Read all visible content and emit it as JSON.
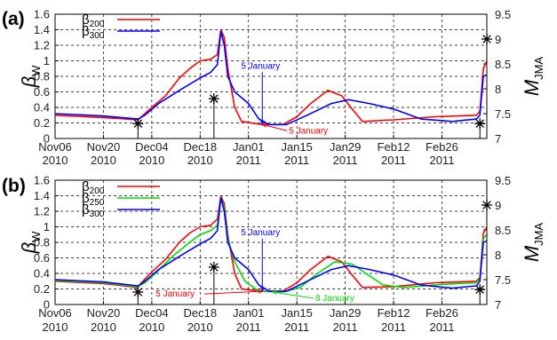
{
  "chart_data": [
    {
      "type": "line",
      "panel_label": "(a)",
      "ylabel": "βW",
      "ylabel_base": "β",
      "ylabel_sub": "W",
      "y2label": "MJMA",
      "y2label_base": "M",
      "y2label_sub": "JMA",
      "ylim": [
        0,
        1.6
      ],
      "y2lim": [
        7,
        9.5
      ],
      "yticks": [
        "0",
        "0.2",
        "0.4",
        "0.6",
        "0.8",
        "1",
        "1.2",
        "1.4",
        "1.6"
      ],
      "y2ticks": [
        "7",
        "7.5",
        "8",
        "8.5",
        "9",
        "9.5"
      ],
      "xticks": [
        {
          "date": "2010-11-06",
          "label1": "Nov06",
          "label2": "2010"
        },
        {
          "date": "2010-11-20",
          "label1": "Nov20",
          "label2": "2010"
        },
        {
          "date": "2010-12-04",
          "label1": "Dec04",
          "label2": "2010"
        },
        {
          "date": "2010-12-18",
          "label1": "Dec18",
          "label2": "2010"
        },
        {
          "date": "2011-01-01",
          "label1": "Jan01",
          "label2": "2011"
        },
        {
          "date": "2011-01-15",
          "label1": "Jan15",
          "label2": "2011"
        },
        {
          "date": "2011-01-29",
          "label1": "Jan29",
          "label2": "2011"
        },
        {
          "date": "2011-02-12",
          "label1": "Feb12",
          "label2": "2011"
        },
        {
          "date": "2011-02-26",
          "label1": "Feb26",
          "label2": "2011"
        }
      ],
      "xlim": [
        "2010-11-06",
        "2011-03-11"
      ],
      "grid": true,
      "legend": "top-left",
      "series": [
        {
          "name": "β200",
          "name_base": "β",
          "name_sub": "200",
          "color": "#ff0000",
          "points": [
            [
              "2010-11-06",
              0.3
            ],
            [
              "2010-11-20",
              0.27
            ],
            [
              "2010-11-30",
              0.24
            ],
            [
              "2010-12-01",
              0.28
            ],
            [
              "2010-12-04",
              0.4
            ],
            [
              "2010-12-08",
              0.55
            ],
            [
              "2010-12-12",
              0.78
            ],
            [
              "2010-12-15",
              0.9
            ],
            [
              "2010-12-18",
              1.0
            ],
            [
              "2010-12-21",
              1.02
            ],
            [
              "2010-12-23",
              1.08
            ],
            [
              "2010-12-24",
              1.4
            ],
            [
              "2010-12-25",
              1.3
            ],
            [
              "2010-12-26",
              0.9
            ],
            [
              "2010-12-28",
              0.4
            ],
            [
              "2010-12-30",
              0.22
            ],
            [
              "2011-01-05",
              0.18
            ],
            [
              "2011-01-11",
              0.18
            ],
            [
              "2011-01-15",
              0.28
            ],
            [
              "2011-01-19",
              0.45
            ],
            [
              "2011-01-24",
              0.62
            ],
            [
              "2011-01-28",
              0.55
            ],
            [
              "2011-01-31",
              0.38
            ],
            [
              "2011-02-03",
              0.22
            ],
            [
              "2011-02-12",
              0.24
            ],
            [
              "2011-02-24",
              0.28
            ],
            [
              "2011-03-08",
              0.3
            ],
            [
              "2011-03-09",
              0.35
            ],
            [
              "2011-03-10",
              0.9
            ],
            [
              "2011-03-11",
              1.0
            ]
          ]
        },
        {
          "name": "β300",
          "name_base": "β",
          "name_sub": "300",
          "color": "#0000ff",
          "points": [
            [
              "2010-11-06",
              0.32
            ],
            [
              "2010-11-20",
              0.29
            ],
            [
              "2010-11-30",
              0.25
            ],
            [
              "2010-12-02",
              0.3
            ],
            [
              "2010-12-06",
              0.45
            ],
            [
              "2010-12-12",
              0.62
            ],
            [
              "2010-12-18",
              0.78
            ],
            [
              "2010-12-21",
              0.85
            ],
            [
              "2010-12-23",
              0.95
            ],
            [
              "2010-12-24",
              1.38
            ],
            [
              "2010-12-25",
              1.2
            ],
            [
              "2010-12-26",
              0.8
            ],
            [
              "2010-12-28",
              0.6
            ],
            [
              "2011-01-01",
              0.45
            ],
            [
              "2011-01-04",
              0.25
            ],
            [
              "2011-01-07",
              0.18
            ],
            [
              "2011-01-12",
              0.18
            ],
            [
              "2011-01-18",
              0.3
            ],
            [
              "2011-01-25",
              0.45
            ],
            [
              "2011-01-30",
              0.5
            ],
            [
              "2011-02-05",
              0.45
            ],
            [
              "2011-02-12",
              0.38
            ],
            [
              "2011-02-20",
              0.25
            ],
            [
              "2011-03-01",
              0.22
            ],
            [
              "2011-03-08",
              0.25
            ],
            [
              "2011-03-09",
              0.3
            ],
            [
              "2011-03-10",
              0.8
            ],
            [
              "2011-03-11",
              0.82
            ]
          ]
        }
      ],
      "earthquakes": [
        {
          "date": "2010-11-30",
          "magnitude": 7.3
        },
        {
          "date": "2010-12-22",
          "magnitude": 7.8
        },
        {
          "date": "2011-03-09",
          "magnitude": 7.3
        },
        {
          "date": "2011-03-11",
          "magnitude": 9.0
        }
      ],
      "annotations": [
        {
          "text": "5 January",
          "color": "#0000ff",
          "position": "above",
          "date": "2011-01-05",
          "value": 0.18
        },
        {
          "text": "5 January",
          "color": "#ff0000",
          "position": "below-right",
          "date": "2011-01-05",
          "value": 0.18
        }
      ]
    },
    {
      "type": "line",
      "panel_label": "(b)",
      "ylabel": "βW",
      "ylabel_base": "β",
      "ylabel_sub": "W",
      "y2label": "MJMA",
      "y2label_base": "M",
      "y2label_sub": "JMA",
      "ylim": [
        0,
        1.6
      ],
      "y2lim": [
        7,
        9.5
      ],
      "yticks": [
        "0",
        "0.2",
        "0.4",
        "0.6",
        "0.8",
        "1",
        "1.2",
        "1.4",
        "1.6"
      ],
      "y2ticks": [
        "7",
        "7.5",
        "8",
        "8.5",
        "9",
        "9.5"
      ],
      "xticks": [
        {
          "date": "2010-11-06",
          "label1": "Nov06",
          "label2": "2010"
        },
        {
          "date": "2010-11-20",
          "label1": "Nov20",
          "label2": "2010"
        },
        {
          "date": "2010-12-04",
          "label1": "Dec04",
          "label2": "2010"
        },
        {
          "date": "2010-12-18",
          "label1": "Dec18",
          "label2": "2010"
        },
        {
          "date": "2011-01-01",
          "label1": "Jan01",
          "label2": "2011"
        },
        {
          "date": "2011-01-15",
          "label1": "Jan15",
          "label2": "2011"
        },
        {
          "date": "2011-01-29",
          "label1": "Jan29",
          "label2": "2011"
        },
        {
          "date": "2011-02-12",
          "label1": "Feb12",
          "label2": "2011"
        },
        {
          "date": "2011-02-26",
          "label1": "Feb26",
          "label2": "2011"
        }
      ],
      "xlim": [
        "2010-11-06",
        "2011-03-11"
      ],
      "grid": true,
      "legend": "top-left",
      "series": [
        {
          "name": "β200",
          "name_base": "β",
          "name_sub": "200",
          "color": "#ff0000",
          "points": [
            [
              "2010-11-06",
              0.3
            ],
            [
              "2010-11-20",
              0.27
            ],
            [
              "2010-11-30",
              0.22
            ],
            [
              "2010-12-01",
              0.28
            ],
            [
              "2010-12-04",
              0.42
            ],
            [
              "2010-12-08",
              0.58
            ],
            [
              "2010-12-12",
              0.8
            ],
            [
              "2010-12-15",
              0.92
            ],
            [
              "2010-12-18",
              1.0
            ],
            [
              "2010-12-21",
              1.02
            ],
            [
              "2010-12-23",
              1.1
            ],
            [
              "2010-12-24",
              1.4
            ],
            [
              "2010-12-25",
              1.3
            ],
            [
              "2010-12-26",
              0.9
            ],
            [
              "2010-12-28",
              0.4
            ],
            [
              "2010-12-30",
              0.2
            ],
            [
              "2011-01-05",
              0.17
            ],
            [
              "2011-01-11",
              0.17
            ],
            [
              "2011-01-15",
              0.28
            ],
            [
              "2011-01-19",
              0.45
            ],
            [
              "2011-01-24",
              0.62
            ],
            [
              "2011-01-28",
              0.55
            ],
            [
              "2011-01-31",
              0.38
            ],
            [
              "2011-02-03",
              0.22
            ],
            [
              "2011-02-12",
              0.23
            ],
            [
              "2011-02-24",
              0.28
            ],
            [
              "2011-03-08",
              0.3
            ],
            [
              "2011-03-09",
              0.35
            ],
            [
              "2011-03-10",
              0.92
            ],
            [
              "2011-03-11",
              1.0
            ]
          ]
        },
        {
          "name": "β250",
          "name_base": "β",
          "name_sub": "250",
          "color": "#00dd00",
          "points": [
            [
              "2010-11-06",
              0.31
            ],
            [
              "2010-11-20",
              0.28
            ],
            [
              "2010-11-30",
              0.23
            ],
            [
              "2010-12-02",
              0.28
            ],
            [
              "2010-12-05",
              0.4
            ],
            [
              "2010-12-10",
              0.62
            ],
            [
              "2010-12-15",
              0.8
            ],
            [
              "2010-12-18",
              0.9
            ],
            [
              "2010-12-21",
              0.95
            ],
            [
              "2010-12-23",
              1.02
            ],
            [
              "2010-12-24",
              1.38
            ],
            [
              "2010-12-25",
              1.25
            ],
            [
              "2010-12-26",
              0.85
            ],
            [
              "2010-12-28",
              0.55
            ],
            [
              "2010-12-31",
              0.3
            ],
            [
              "2011-01-04",
              0.17
            ],
            [
              "2011-01-11",
              0.16
            ],
            [
              "2011-01-16",
              0.22
            ],
            [
              "2011-01-21",
              0.4
            ],
            [
              "2011-01-26",
              0.55
            ],
            [
              "2011-01-31",
              0.52
            ],
            [
              "2011-02-04",
              0.4
            ],
            [
              "2011-02-09",
              0.25
            ],
            [
              "2011-02-15",
              0.22
            ],
            [
              "2011-02-26",
              0.26
            ],
            [
              "2011-03-08",
              0.28
            ],
            [
              "2011-03-09",
              0.33
            ],
            [
              "2011-03-10",
              0.85
            ],
            [
              "2011-03-11",
              0.9
            ]
          ]
        },
        {
          "name": "β300",
          "name_base": "β",
          "name_sub": "300",
          "color": "#0000ff",
          "points": [
            [
              "2010-11-06",
              0.32
            ],
            [
              "2010-11-20",
              0.29
            ],
            [
              "2010-11-30",
              0.24
            ],
            [
              "2010-12-02",
              0.3
            ],
            [
              "2010-12-06",
              0.45
            ],
            [
              "2010-12-12",
              0.62
            ],
            [
              "2010-12-18",
              0.78
            ],
            [
              "2010-12-21",
              0.85
            ],
            [
              "2010-12-23",
              0.95
            ],
            [
              "2010-12-24",
              1.37
            ],
            [
              "2010-12-25",
              1.2
            ],
            [
              "2010-12-26",
              0.8
            ],
            [
              "2010-12-28",
              0.6
            ],
            [
              "2011-01-01",
              0.45
            ],
            [
              "2011-01-04",
              0.25
            ],
            [
              "2011-01-07",
              0.17
            ],
            [
              "2011-01-12",
              0.17
            ],
            [
              "2011-01-18",
              0.3
            ],
            [
              "2011-01-25",
              0.45
            ],
            [
              "2011-01-30",
              0.5
            ],
            [
              "2011-02-05",
              0.45
            ],
            [
              "2011-02-12",
              0.38
            ],
            [
              "2011-02-20",
              0.25
            ],
            [
              "2011-03-01",
              0.21
            ],
            [
              "2011-03-08",
              0.24
            ],
            [
              "2011-03-09",
              0.3
            ],
            [
              "2011-03-10",
              0.8
            ],
            [
              "2011-03-11",
              0.82
            ]
          ]
        }
      ],
      "earthquakes": [
        {
          "date": "2010-11-30",
          "magnitude": 7.25
        },
        {
          "date": "2010-12-22",
          "magnitude": 7.75
        },
        {
          "date": "2011-03-09",
          "magnitude": 7.3
        },
        {
          "date": "2011-03-11",
          "magnitude": 9.0
        }
      ],
      "annotations": [
        {
          "text": "5 January",
          "color": "#0000ff",
          "position": "above",
          "date": "2011-01-05",
          "value": 0.17
        },
        {
          "text": "5 January",
          "color": "#ff0000",
          "position": "left",
          "date": "2011-01-05",
          "value": 0.17
        },
        {
          "text": "8 January",
          "color": "#00dd00",
          "position": "right",
          "date": "2011-01-08",
          "value": 0.16
        }
      ]
    }
  ]
}
